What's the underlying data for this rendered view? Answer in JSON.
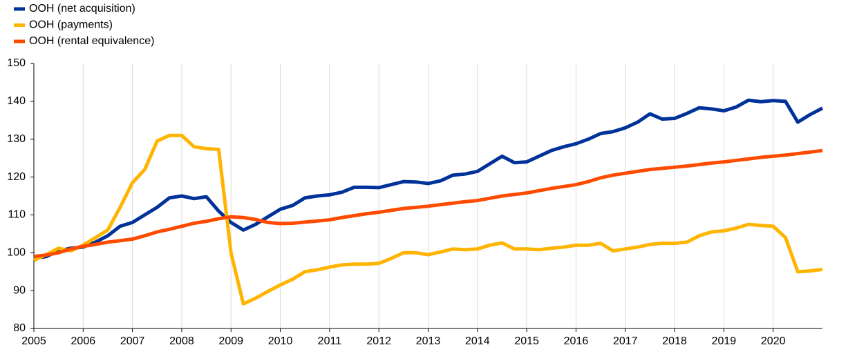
{
  "chart_data": {
    "type": "line",
    "x": [
      2005,
      2005.25,
      2005.5,
      2005.75,
      2006,
      2006.25,
      2006.5,
      2006.75,
      2007,
      2007.25,
      2007.5,
      2007.75,
      2008,
      2008.25,
      2008.5,
      2008.75,
      2009,
      2009.25,
      2009.5,
      2009.75,
      2010,
      2010.25,
      2010.5,
      2010.75,
      2011,
      2011.25,
      2011.5,
      2011.75,
      2012,
      2012.25,
      2012.5,
      2012.75,
      2013,
      2013.25,
      2013.5,
      2013.75,
      2014,
      2014.25,
      2014.5,
      2014.75,
      2015,
      2015.25,
      2015.5,
      2015.75,
      2016,
      2016.25,
      2016.5,
      2016.75,
      2017,
      2017.25,
      2017.5,
      2017.75,
      2018,
      2018.25,
      2018.5,
      2018.75,
      2019,
      2019.25,
      2019.5,
      2019.75,
      2020,
      2020.25,
      2020.5,
      2020.75,
      2021
    ],
    "series": [
      {
        "name": "OOH (net acquisition)",
        "color": "#003299",
        "values": [
          98.5,
          99,
          100.5,
          101.2,
          101.5,
          102.8,
          104.5,
          107,
          108,
          110,
          112,
          114.5,
          115,
          114.3,
          114.8,
          111,
          108,
          106,
          107.5,
          109.5,
          111.5,
          112.5,
          114.5,
          115,
          115.3,
          116,
          117.3,
          117.3,
          117.2,
          118,
          118.8,
          118.7,
          118.3,
          119,
          120.5,
          120.8,
          121.5,
          123.5,
          125.5,
          123.8,
          124,
          125.5,
          127,
          128,
          128.8,
          130,
          131.5,
          132,
          133,
          134.5,
          136.7,
          135.3,
          135.5,
          136.8,
          138.3,
          138,
          137.5,
          138.5,
          140.3,
          139.9,
          140.2,
          140,
          134.5,
          136.5,
          138.2
        ]
      },
      {
        "name": "OOH (payments)",
        "color": "#ffb400",
        "values": [
          98,
          99.5,
          101.2,
          100.5,
          102,
          104,
          106,
          112,
          118.5,
          122,
          129.5,
          131,
          131,
          128,
          127.5,
          127.3,
          100,
          86.5,
          88,
          89.8,
          91.5,
          93,
          95,
          95.5,
          96.2,
          96.8,
          97,
          97,
          97.2,
          98.5,
          100,
          100,
          99.5,
          100.2,
          101,
          100.8,
          101,
          102,
          102.6,
          101,
          101,
          100.8,
          101.2,
          101.5,
          102,
          102,
          102.5,
          100.5,
          101,
          101.5,
          102.2,
          102.5,
          102.5,
          102.8,
          104.5,
          105.5,
          105.8,
          106.5,
          107.5,
          107.2,
          107,
          104,
          95,
          95.2,
          95.6
        ]
      },
      {
        "name": "OOH (rental equivalence)",
        "color": "#ff4b00",
        "values": [
          99,
          99.4,
          100,
          101,
          101.7,
          102.2,
          102.8,
          103.2,
          103.6,
          104.5,
          105.5,
          106.2,
          107,
          107.8,
          108.3,
          109,
          109.5,
          109.3,
          108.8,
          108,
          107.7,
          107.8,
          108.1,
          108.4,
          108.7,
          109.3,
          109.8,
          110.3,
          110.7,
          111.2,
          111.7,
          112,
          112.3,
          112.7,
          113.1,
          113.5,
          113.8,
          114.4,
          115,
          115.4,
          115.8,
          116.4,
          117,
          117.5,
          118,
          118.8,
          119.8,
          120.5,
          121,
          121.5,
          122,
          122.3,
          122.6,
          122.9,
          123.3,
          123.7,
          124,
          124.4,
          124.8,
          125.2,
          125.5,
          125.8,
          126.2,
          126.6,
          127
        ]
      }
    ],
    "xlim": [
      2005,
      2021
    ],
    "xticks": [
      2005,
      2006,
      2007,
      2008,
      2009,
      2010,
      2011,
      2012,
      2013,
      2014,
      2015,
      2016,
      2017,
      2018,
      2019,
      2020
    ],
    "ylim": [
      80,
      150
    ],
    "yticks": [
      80,
      90,
      100,
      110,
      120,
      130,
      140,
      150
    ],
    "grid": "x",
    "legend": "top-left"
  }
}
